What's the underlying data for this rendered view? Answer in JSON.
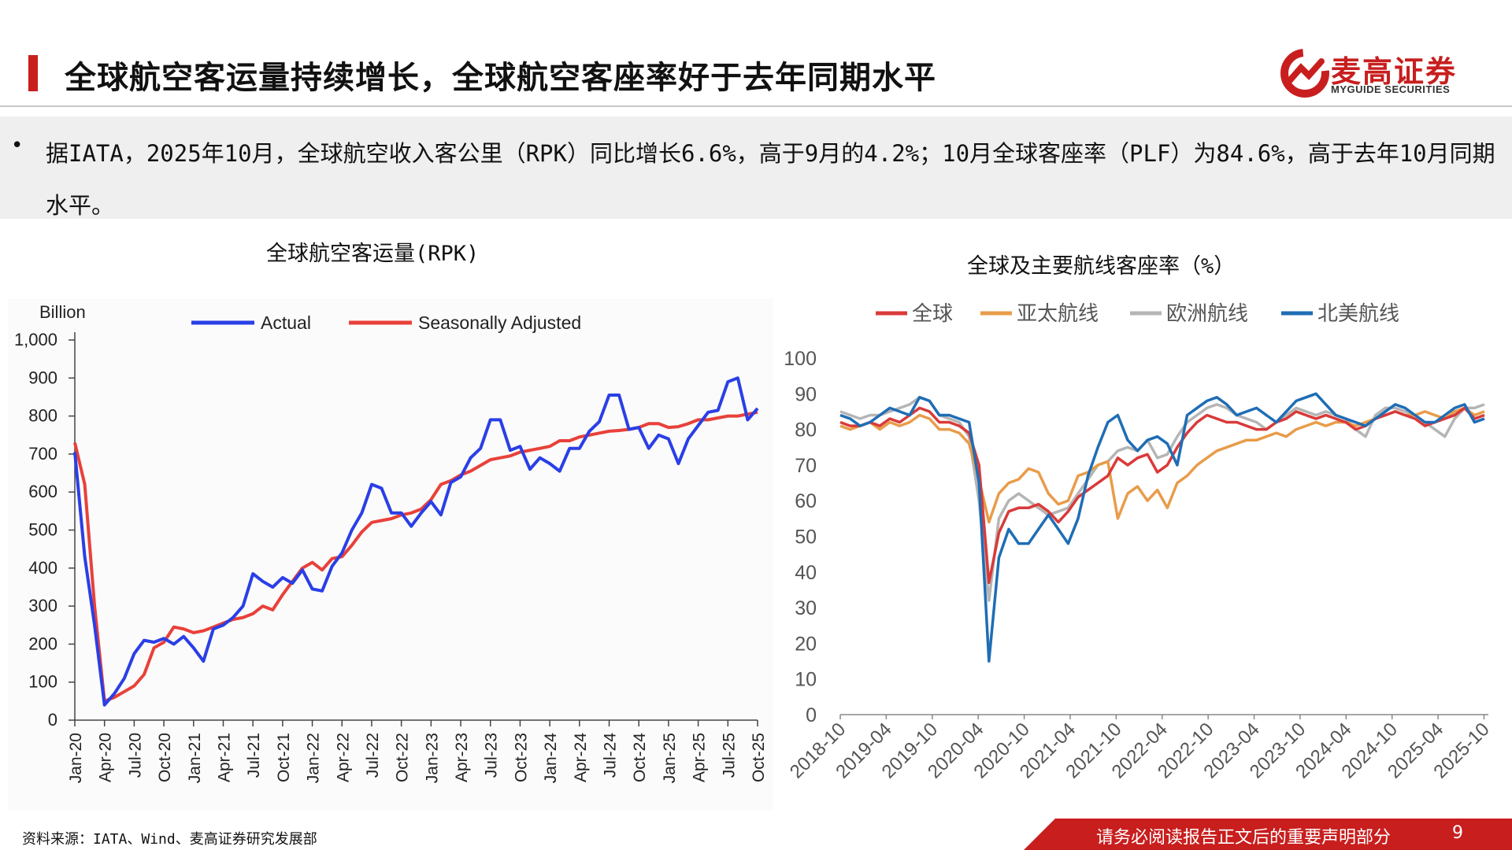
{
  "header": {
    "title": "全球航空客运量持续增长，全球航空客座率好于去年同期水平",
    "brand_name": "麦高证券",
    "brand_sub": "MYGUIDE SECURITIES",
    "accent": "#c81e1e"
  },
  "summary": {
    "bullet": "•",
    "text": "据IATA，2025年10月，全球航空收入客公里（RPK）同比增长6.6%，高于9月的4.2%；10月全球客座率（PLF）为84.6%，高于去年10月同期水平。"
  },
  "footer": {
    "source": "资料来源：IATA、Wind、麦高证券研究发展部",
    "notice": "请务必阅读报告正文后的重要声明部分",
    "page": "9"
  },
  "chart_data": [
    {
      "type": "line",
      "title": "全球航空客运量(RPK)",
      "ylabel": "Billion",
      "ylim": [
        0,
        1000
      ],
      "yticks": [
        "0",
        "100",
        "200",
        "300",
        "400",
        "500",
        "600",
        "700",
        "800",
        "900",
        "1,000"
      ],
      "xticks": [
        "Jan-20",
        "Apr-20",
        "Jul-20",
        "Oct-20",
        "Jan-21",
        "Apr-21",
        "Jul-21",
        "Oct-21",
        "Jan-22",
        "Apr-22",
        "Jul-22",
        "Oct-22",
        "Jan-23",
        "Apr-23",
        "Jul-23",
        "Oct-23",
        "Jan-24",
        "Apr-24",
        "Jul-24",
        "Oct-24",
        "Jan-25",
        "Apr-25",
        "Jul-25",
        "Oct-25"
      ],
      "legend_position": "top",
      "series": [
        {
          "name": "Actual",
          "color": "#2a3fe6",
          "values": [
            705,
            430,
            250,
            40,
            70,
            110,
            175,
            210,
            205,
            215,
            200,
            220,
            190,
            155,
            240,
            250,
            270,
            300,
            385,
            365,
            350,
            375,
            360,
            395,
            345,
            340,
            405,
            440,
            500,
            545,
            620,
            610,
            545,
            545,
            510,
            545,
            575,
            540,
            625,
            640,
            690,
            715,
            790,
            790,
            710,
            720,
            660,
            690,
            675,
            655,
            715,
            715,
            760,
            785,
            855,
            855,
            765,
            770,
            715,
            750,
            740,
            675,
            740,
            775,
            810,
            815,
            890,
            900,
            790,
            820
          ]
        },
        {
          "name": "Seasonally Adjusted",
          "color": "#e8413a",
          "values": [
            730,
            620,
            300,
            50,
            60,
            75,
            90,
            120,
            190,
            205,
            245,
            240,
            230,
            235,
            245,
            255,
            265,
            270,
            280,
            300,
            290,
            330,
            365,
            400,
            415,
            395,
            425,
            430,
            460,
            495,
            520,
            525,
            530,
            540,
            545,
            555,
            580,
            620,
            630,
            645,
            655,
            670,
            685,
            690,
            695,
            705,
            710,
            715,
            720,
            735,
            735,
            745,
            750,
            755,
            760,
            762,
            765,
            770,
            780,
            780,
            770,
            772,
            780,
            790,
            790,
            795,
            800,
            800,
            805,
            810
          ]
        }
      ]
    },
    {
      "type": "line",
      "title": "全球及主要航线客座率（%）",
      "ylim": [
        0,
        100
      ],
      "yticks": [
        "0",
        "10",
        "20",
        "30",
        "40",
        "50",
        "60",
        "70",
        "80",
        "90",
        "100"
      ],
      "xticks": [
        "2018-10",
        "2019-04",
        "2019-10",
        "2020-04",
        "2020-10",
        "2021-04",
        "2021-10",
        "2022-04",
        "2022-10",
        "2023-04",
        "2023-10",
        "2024-04",
        "2024-10",
        "2025-04",
        "2025-10"
      ],
      "legend_position": "top",
      "series": [
        {
          "name": "全球",
          "color": "#d93a3a",
          "values": [
            82,
            81,
            81,
            82,
            81,
            83,
            82,
            84,
            86,
            85,
            82,
            82,
            81,
            79,
            70,
            37,
            51,
            57,
            58,
            58,
            59,
            57,
            54,
            57,
            61,
            63,
            65,
            67,
            72,
            70,
            72,
            73,
            68,
            70,
            75,
            79,
            82,
            84,
            83,
            82,
            82,
            81,
            80,
            80,
            82,
            83,
            85,
            84,
            83,
            84,
            83,
            82,
            80,
            81,
            83,
            84,
            85,
            84,
            83,
            81,
            82,
            83,
            84,
            86,
            83,
            84
          ]
        },
        {
          "name": "亚太航线",
          "color": "#e89c4a",
          "values": [
            81,
            80,
            81,
            82,
            80,
            82,
            81,
            82,
            84,
            83,
            80,
            80,
            79,
            76,
            66,
            54,
            62,
            65,
            66,
            69,
            68,
            62,
            59,
            60,
            67,
            68,
            70,
            71,
            55,
            62,
            64,
            60,
            63,
            58,
            65,
            67,
            70,
            72,
            74,
            75,
            76,
            77,
            77,
            78,
            79,
            78,
            80,
            81,
            82,
            81,
            82,
            82,
            81,
            82,
            83,
            84,
            85,
            84,
            84,
            85,
            84,
            83,
            85,
            86,
            84,
            85
          ]
        },
        {
          "name": "欧洲航线",
          "color": "#b5b5b5",
          "values": [
            85,
            84,
            83,
            84,
            84,
            85,
            86,
            87,
            89,
            88,
            84,
            83,
            82,
            78,
            60,
            32,
            55,
            60,
            62,
            60,
            58,
            56,
            57,
            58,
            62,
            66,
            70,
            71,
            74,
            75,
            74,
            77,
            72,
            73,
            78,
            82,
            84,
            86,
            87,
            86,
            84,
            83,
            82,
            80,
            82,
            84,
            86,
            85,
            84,
            85,
            84,
            83,
            80,
            78,
            84,
            86,
            86,
            85,
            84,
            82,
            80,
            78,
            83,
            86,
            86,
            87
          ]
        },
        {
          "name": "北美航线",
          "color": "#1f6db5",
          "values": [
            84,
            83,
            81,
            82,
            84,
            86,
            85,
            84,
            89,
            88,
            84,
            84,
            83,
            82,
            65,
            15,
            44,
            52,
            48,
            48,
            52,
            56,
            52,
            48,
            55,
            67,
            75,
            82,
            84,
            77,
            74,
            77,
            78,
            76,
            70,
            84,
            86,
            88,
            89,
            87,
            84,
            85,
            86,
            84,
            82,
            85,
            88,
            89,
            90,
            87,
            84,
            83,
            82,
            81,
            83,
            85,
            87,
            86,
            84,
            82,
            82,
            84,
            86,
            87,
            82,
            83
          ]
        }
      ]
    }
  ]
}
